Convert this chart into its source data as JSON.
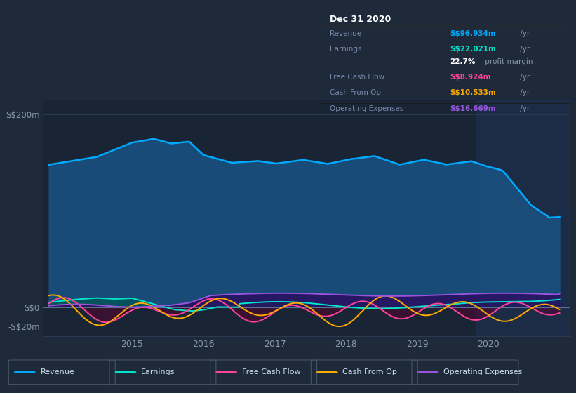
{
  "bg_color": "#1e2a3a",
  "plot_bg": "#192535",
  "shaded_bg": "#1e3050",
  "revenue_color": "#00aaff",
  "earnings_color": "#00e5cc",
  "fcf_color": "#ff4499",
  "cashfromop_color": "#ffaa00",
  "opex_color": "#9955dd",
  "revenue_fill": "#1a5080",
  "earnings_fill_pos": "#005555",
  "earnings_fill_neg": "#3a0020",
  "fcf_fill_neg": "#5a0030",
  "opex_fill": "#2a1060",
  "zero_line_color": "#5a7090",
  "grid_color": "#2a3a50",
  "tick_color": "#8899aa",
  "info_box_bg": "#0d0d0d",
  "info_box_border": "#333333",
  "info_title": "Dec 31 2020",
  "legend": [
    {
      "label": "Revenue",
      "color": "#00aaff"
    },
    {
      "label": "Earnings",
      "color": "#00e5cc"
    },
    {
      "label": "Free Cash Flow",
      "color": "#ff4499"
    },
    {
      "label": "Cash From Op",
      "color": "#ffaa00"
    },
    {
      "label": "Operating Expenses",
      "color": "#9955dd"
    }
  ],
  "ylim": [
    -30,
    215
  ],
  "xlim_start": 2013.75,
  "xlim_end": 2021.15,
  "shaded_region_start": 2019.83,
  "yticks": [
    -20,
    0,
    200
  ],
  "ytick_labels": [
    "-S$20m",
    "S$0",
    "S$200m"
  ],
  "xticks": [
    2015,
    2016,
    2017,
    2018,
    2019,
    2020
  ],
  "xtick_labels": [
    "2015",
    "2016",
    "2017",
    "2018",
    "2019",
    "2020"
  ]
}
